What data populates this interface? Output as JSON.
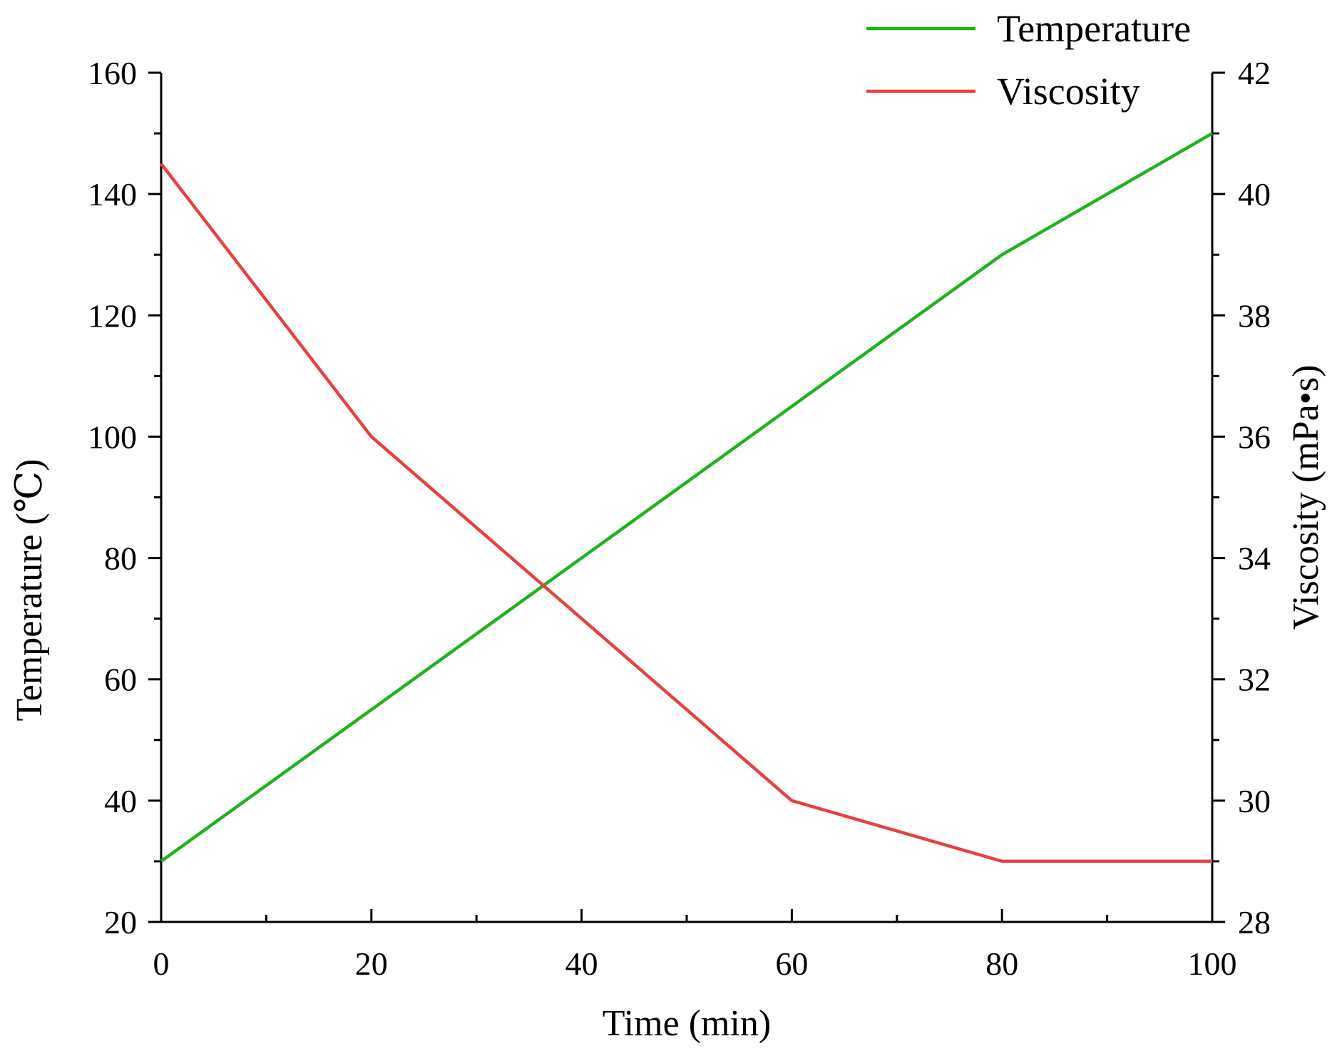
{
  "chart_data": {
    "type": "line",
    "title": "",
    "x": [
      0,
      20,
      40,
      60,
      80,
      100
    ],
    "xlabel": "Time (min)",
    "xlim": [
      0,
      100
    ],
    "xticks": [
      0,
      20,
      40,
      60,
      80,
      100
    ],
    "ylabel_left": "Temperature (℃)",
    "ylim_left": [
      20,
      160
    ],
    "yticks_left": [
      20,
      40,
      60,
      80,
      100,
      120,
      140,
      160
    ],
    "ylabel_right": "Viscosity (mPa•s)",
    "ylim_right": [
      28,
      42
    ],
    "yticks_right": [
      28,
      30,
      32,
      34,
      36,
      38,
      40,
      42
    ],
    "grid": false,
    "legend_position": "top-right",
    "series": [
      {
        "name": "Temperature",
        "axis": "left",
        "color": "#1db31d",
        "values": [
          30,
          55,
          80,
          105,
          130,
          150
        ]
      },
      {
        "name": "Viscosity",
        "axis": "right",
        "color": "#e84040",
        "values": [
          40.5,
          36,
          33,
          30,
          29,
          29
        ]
      }
    ]
  }
}
